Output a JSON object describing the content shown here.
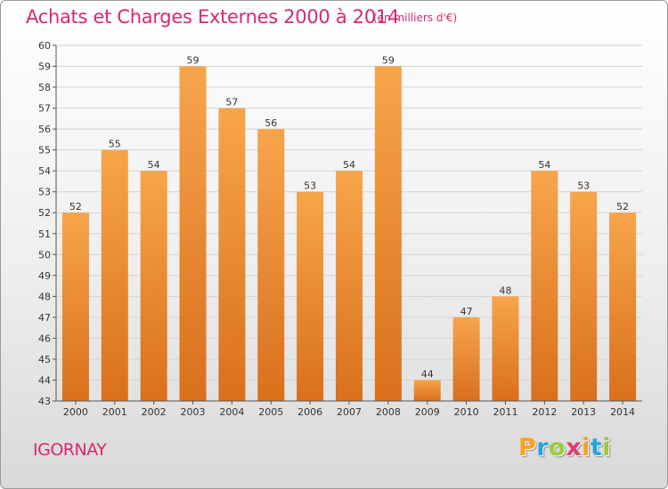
{
  "title": "Achats et Charges Externes 2000 à 2014",
  "subtitle": "(en milliers d'€)",
  "commune": "IGORNAY",
  "logo": {
    "letters": [
      "P",
      "r",
      "o",
      "x",
      "i",
      "t",
      "i"
    ],
    "colors": [
      "#f7a21b",
      "#2aa3d8",
      "#9ccb3b",
      "#e33b6e",
      "#f7a21b",
      "#2aa3d8",
      "#9ccb3b"
    ]
  },
  "colors": {
    "bar_top": "#f7a54b",
    "bar_bottom": "#d9701c",
    "title": "#d6286f"
  },
  "chart_data": {
    "type": "bar",
    "title": "Achats et Charges Externes 2000 à 2014",
    "categories": [
      "2000",
      "2001",
      "2002",
      "2003",
      "2004",
      "2005",
      "2006",
      "2007",
      "2008",
      "2009",
      "2010",
      "2011",
      "2012",
      "2013",
      "2014"
    ],
    "values": [
      52,
      55,
      54,
      59,
      57,
      56,
      53,
      54,
      59,
      44,
      47,
      48,
      54,
      53,
      52
    ],
    "ylim": [
      43,
      60
    ],
    "yticks": [
      43,
      44,
      45,
      46,
      47,
      48,
      49,
      50,
      51,
      52,
      53,
      54,
      55,
      56,
      57,
      58,
      59,
      60
    ],
    "grid": true,
    "xlabel": "",
    "ylabel": ""
  }
}
